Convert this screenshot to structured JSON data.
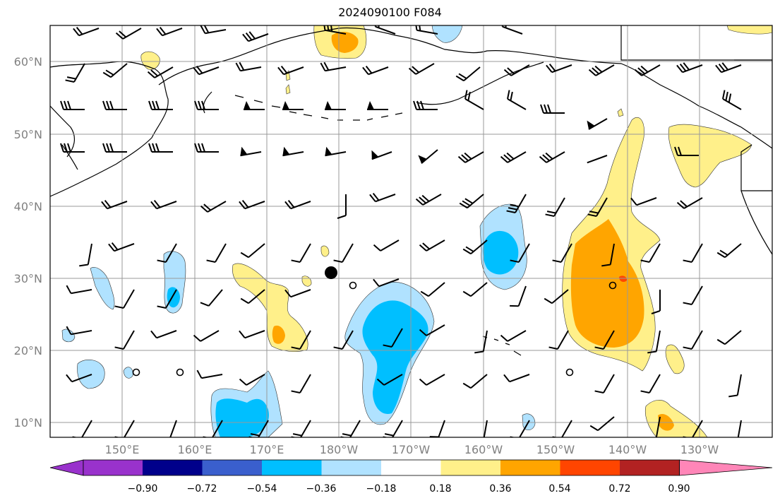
{
  "title": "2024090100 F084",
  "lat_labels": [
    "60°N",
    "50°N",
    "40°N",
    "30°N",
    "20°N",
    "10°N"
  ],
  "lon_labels": [
    "150°E",
    "160°E",
    "170°E",
    "180°W",
    "170°W",
    "160°W",
    "150°W",
    "140°W",
    "130°W"
  ],
  "colorbar": {
    "ticks": [
      "−0.90",
      "−0.72",
      "−0.54",
      "−0.36",
      "−0.18",
      "0.18",
      "0.36",
      "0.54",
      "0.72",
      "0.90"
    ],
    "colors": [
      "#9932cc",
      "#00008b",
      "#3a5fcd",
      "#00bfff",
      "#b0e2ff",
      "#ffffff",
      "#fff08a",
      "#ffa500",
      "#ff4500",
      "#b22222",
      "#ff86b8"
    ]
  },
  "colors": {
    "light_blue": "#b0e2ff",
    "blue": "#00bfff",
    "light_yellow": "#fff08a",
    "orange": "#ffa500",
    "red": "#ff4500"
  }
}
